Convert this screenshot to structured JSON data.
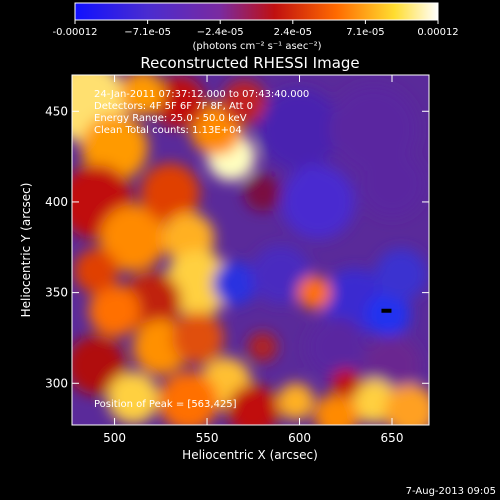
{
  "colorbar": {
    "tick_labels": [
      "-0.00012",
      "−7.1e-05",
      "−2.4e-05",
      "2.4e-05",
      "7.1e-05",
      "0.00012"
    ],
    "unit_label": "(photons cm⁻² s⁻¹ asec⁻²)",
    "range": [
      -0.00012,
      0.00012
    ]
  },
  "chart_data": {
    "type": "heatmap",
    "title": "Reconstructed RHESSI Image",
    "xlabel": "Heliocentric X (arcsec)",
    "ylabel": "Heliocentric Y (arcsec)",
    "xlim": [
      477,
      670
    ],
    "ylim": [
      277,
      470
    ],
    "x_ticks": [
      500,
      550,
      600,
      650
    ],
    "y_ticks": [
      300,
      350,
      400,
      450
    ],
    "colormap": "blue-purple-red-yellow-white",
    "annotations": [
      "24-Jan-2011 07:37:12.000 to 07:43:40.000",
      "Detectors: 4F 5F 6F 7F 8F, Att 0",
      "Energy Range: 25.0 - 50.0 keV",
      "Clean    Total counts: 1.13E+04"
    ],
    "peak_label": "Position of Peak = [563,425]",
    "peak": [
      563,
      425
    ]
  },
  "footer_date": "7-Aug-2013 09:05"
}
